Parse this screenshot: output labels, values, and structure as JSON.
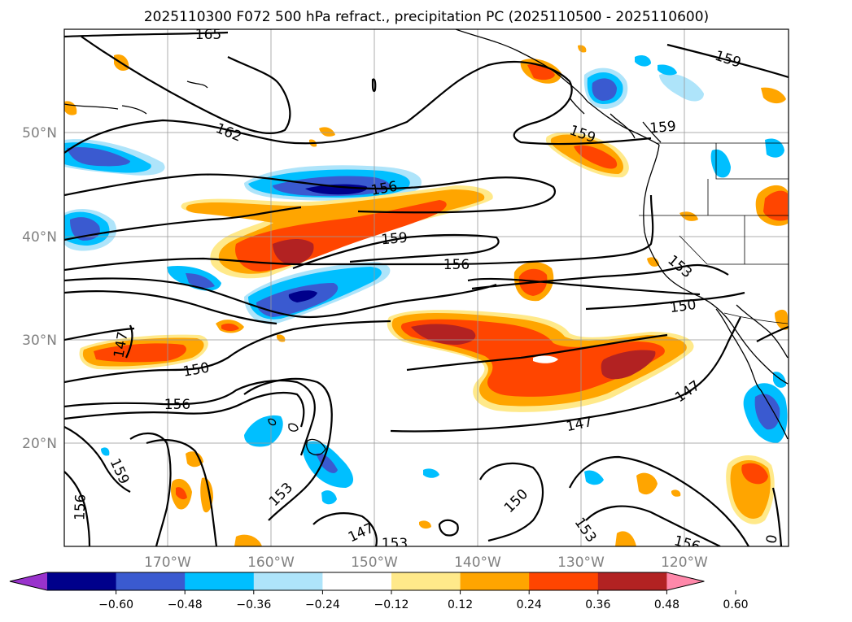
{
  "title": "2025110300 F072 500 hPa refract., precipitation PC (2025110500 - 2025110600)",
  "lat_labels": [
    "50°N",
    "40°N",
    "30°N",
    "20°N"
  ],
  "lon_labels": [
    "170°W",
    "160°W",
    "150°W",
    "140°W",
    "130°W",
    "120°W"
  ],
  "contour_labels": [
    "165",
    "159",
    "162",
    "159",
    "156",
    "159",
    "159",
    "156",
    "153",
    "150",
    "147",
    "150",
    "156",
    "147",
    "147",
    "159",
    "156",
    "153",
    "147",
    "153",
    "150",
    "153",
    "156",
    "0"
  ],
  "colorbar": {
    "tick_labels": [
      "−0.60",
      "−0.48",
      "−0.36",
      "−0.24",
      "−0.12",
      "0.12",
      "0.24",
      "0.36",
      "0.48",
      "0.60"
    ],
    "colors": [
      "#9932cc",
      "#00008b",
      "#3a5ad0",
      "#00bfff",
      "#aee4fa",
      "#ffffff",
      "#ffe98a",
      "#ffa500",
      "#ff4500",
      "#b22222",
      "#ff88aa"
    ]
  },
  "colors": {
    "grid": "#9a9a9a",
    "tick_label": "#808080"
  }
}
